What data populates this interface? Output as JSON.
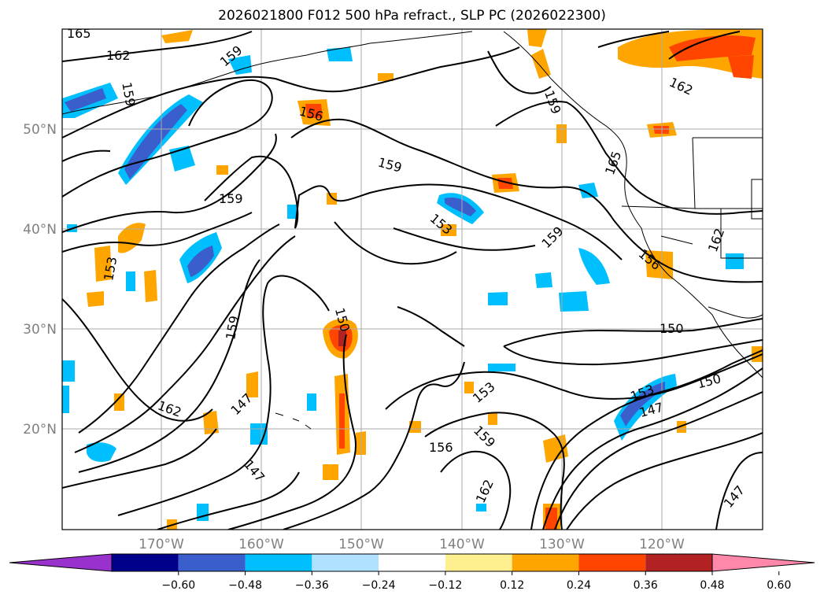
{
  "title": "2026021800 F012 500 hPa refract., SLP PC (2026022300)",
  "map": {
    "lon_ticks": [
      "170°W",
      "160°W",
      "150°W",
      "140°W",
      "130°W",
      "120°W"
    ],
    "lat_ticks": [
      "50°N",
      "40°N",
      "30°N",
      "20°N"
    ],
    "extent": {
      "lon_min": -180,
      "lon_max": -110,
      "lat_min": 10,
      "lat_max": 60
    },
    "gridlines": true,
    "contour_labels": [
      "165",
      "162",
      "159",
      "156",
      "153",
      "150",
      "147"
    ]
  },
  "colorbar": {
    "ticks": [
      "−0.60",
      "−0.48",
      "−0.36",
      "−0.24",
      "−0.12",
      "0.12",
      "0.24",
      "0.36",
      "0.48",
      "0.60"
    ],
    "colors": [
      "#9932cc",
      "#00008b",
      "#3a5fcd",
      "#00bfff",
      "#b0e2ff",
      "#ffffff",
      "#fff08f",
      "#ffa500",
      "#ff4500",
      "#b22222",
      "#ff88aa"
    ],
    "extend": "both"
  }
}
